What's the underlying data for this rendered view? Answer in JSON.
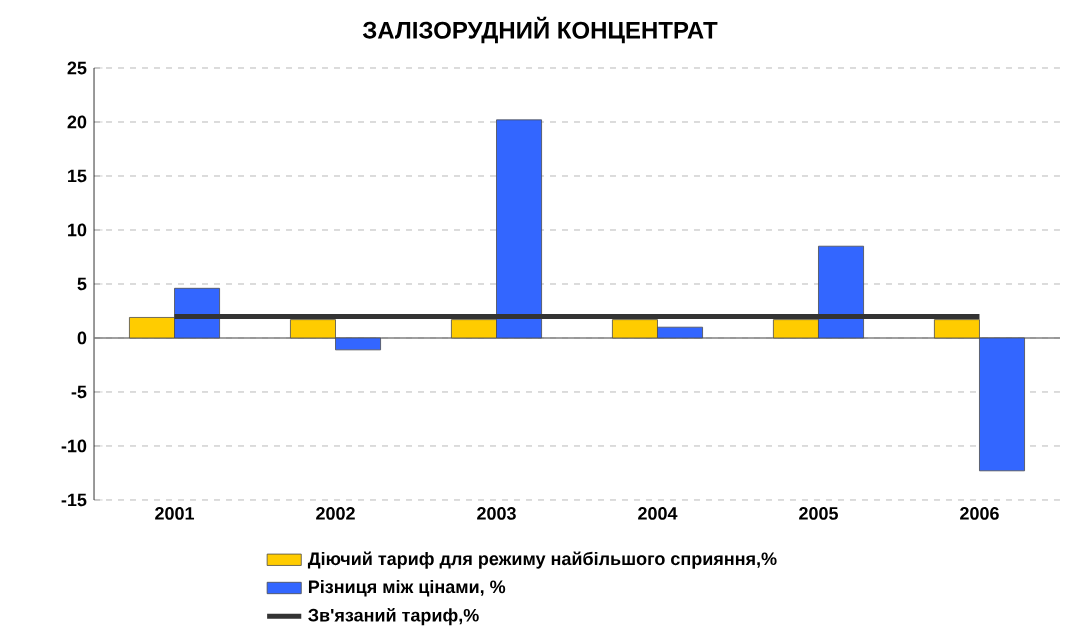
{
  "chart_data": {
    "type": "bar",
    "title": "ЗАЛІЗОРУДНИЙ КОНЦЕНТРАТ",
    "categories": [
      "2001",
      "2002",
      "2003",
      "2004",
      "2005",
      "2006"
    ],
    "series": [
      {
        "name": "Діючий тариф для режиму найбільшого сприяння,%",
        "color": "#ffcc00",
        "values": [
          1.9,
          1.7,
          1.7,
          1.7,
          1.7,
          1.7
        ]
      },
      {
        "name": "Різниця між цінами, %",
        "color": "#3366ff",
        "values": [
          4.6,
          -1.1,
          20.2,
          1.0,
          8.5,
          -12.3
        ]
      },
      {
        "name": "Зв'язаний тариф,%",
        "type": "line",
        "color": "#333333",
        "values": [
          2,
          2,
          2,
          2,
          2,
          2
        ]
      }
    ],
    "ylim": [
      -15,
      25
    ],
    "yticks": [
      -15,
      -10,
      -5,
      0,
      5,
      10,
      15,
      20,
      25
    ],
    "grid": "y",
    "legend": "bottom"
  }
}
